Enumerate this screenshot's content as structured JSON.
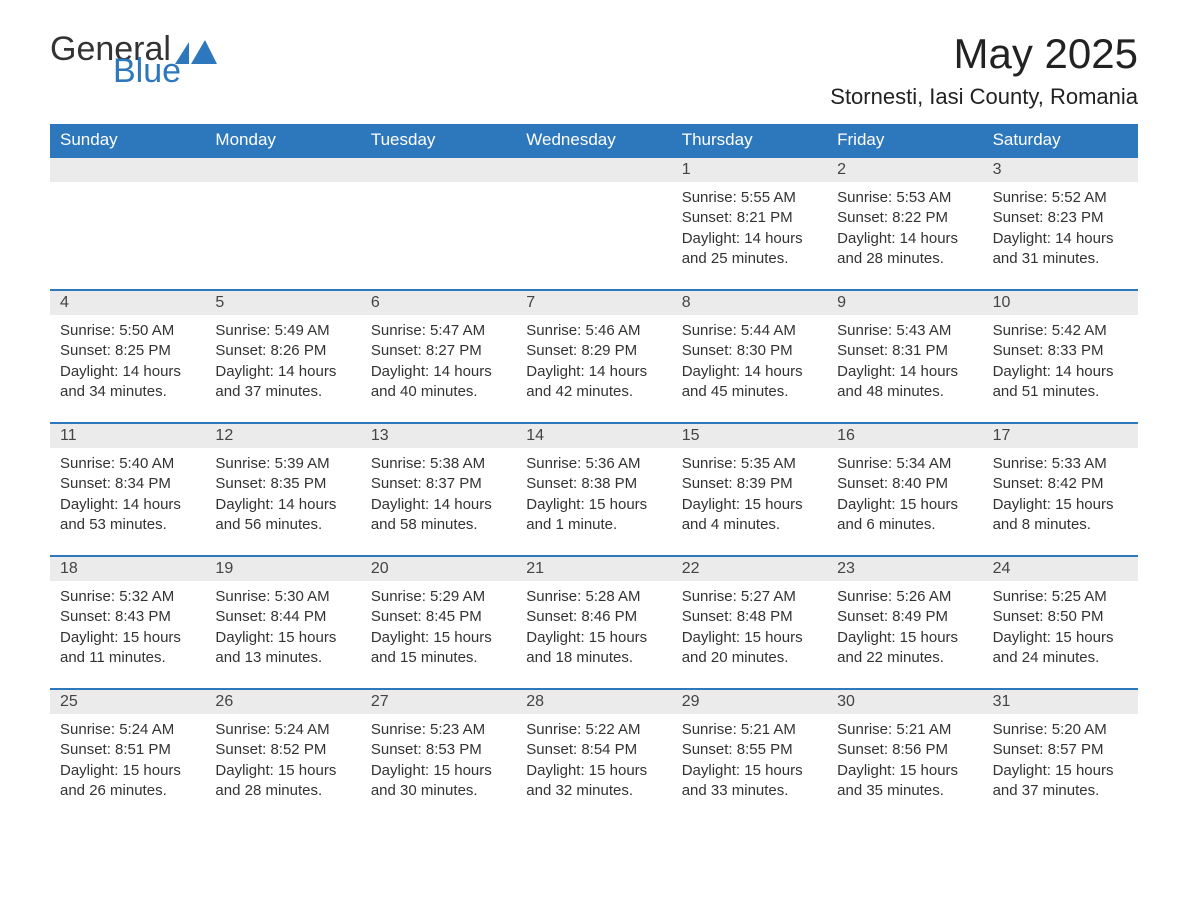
{
  "logo": {
    "part1": "General",
    "part2": "Blue"
  },
  "title": "May 2025",
  "location": "Stornesti, Iasi County, Romania",
  "colors": {
    "header_bg": "#2d77bc",
    "header_text": "#ffffff",
    "daynum_bg": "#ebebeb",
    "border": "#2d77bc",
    "text": "#333333",
    "background": "#ffffff"
  },
  "weekdays": [
    "Sunday",
    "Monday",
    "Tuesday",
    "Wednesday",
    "Thursday",
    "Friday",
    "Saturday"
  ],
  "weeks": [
    [
      null,
      null,
      null,
      null,
      {
        "n": "1",
        "sunrise": "5:55 AM",
        "sunset": "8:21 PM",
        "dl1": "14 hours",
        "dl2": "and 25 minutes."
      },
      {
        "n": "2",
        "sunrise": "5:53 AM",
        "sunset": "8:22 PM",
        "dl1": "14 hours",
        "dl2": "and 28 minutes."
      },
      {
        "n": "3",
        "sunrise": "5:52 AM",
        "sunset": "8:23 PM",
        "dl1": "14 hours",
        "dl2": "and 31 minutes."
      }
    ],
    [
      {
        "n": "4",
        "sunrise": "5:50 AM",
        "sunset": "8:25 PM",
        "dl1": "14 hours",
        "dl2": "and 34 minutes."
      },
      {
        "n": "5",
        "sunrise": "5:49 AM",
        "sunset": "8:26 PM",
        "dl1": "14 hours",
        "dl2": "and 37 minutes."
      },
      {
        "n": "6",
        "sunrise": "5:47 AM",
        "sunset": "8:27 PM",
        "dl1": "14 hours",
        "dl2": "and 40 minutes."
      },
      {
        "n": "7",
        "sunrise": "5:46 AM",
        "sunset": "8:29 PM",
        "dl1": "14 hours",
        "dl2": "and 42 minutes."
      },
      {
        "n": "8",
        "sunrise": "5:44 AM",
        "sunset": "8:30 PM",
        "dl1": "14 hours",
        "dl2": "and 45 minutes."
      },
      {
        "n": "9",
        "sunrise": "5:43 AM",
        "sunset": "8:31 PM",
        "dl1": "14 hours",
        "dl2": "and 48 minutes."
      },
      {
        "n": "10",
        "sunrise": "5:42 AM",
        "sunset": "8:33 PM",
        "dl1": "14 hours",
        "dl2": "and 51 minutes."
      }
    ],
    [
      {
        "n": "11",
        "sunrise": "5:40 AM",
        "sunset": "8:34 PM",
        "dl1": "14 hours",
        "dl2": "and 53 minutes."
      },
      {
        "n": "12",
        "sunrise": "5:39 AM",
        "sunset": "8:35 PM",
        "dl1": "14 hours",
        "dl2": "and 56 minutes."
      },
      {
        "n": "13",
        "sunrise": "5:38 AM",
        "sunset": "8:37 PM",
        "dl1": "14 hours",
        "dl2": "and 58 minutes."
      },
      {
        "n": "14",
        "sunrise": "5:36 AM",
        "sunset": "8:38 PM",
        "dl1": "15 hours",
        "dl2": "and 1 minute."
      },
      {
        "n": "15",
        "sunrise": "5:35 AM",
        "sunset": "8:39 PM",
        "dl1": "15 hours",
        "dl2": "and 4 minutes."
      },
      {
        "n": "16",
        "sunrise": "5:34 AM",
        "sunset": "8:40 PM",
        "dl1": "15 hours",
        "dl2": "and 6 minutes."
      },
      {
        "n": "17",
        "sunrise": "5:33 AM",
        "sunset": "8:42 PM",
        "dl1": "15 hours",
        "dl2": "and 8 minutes."
      }
    ],
    [
      {
        "n": "18",
        "sunrise": "5:32 AM",
        "sunset": "8:43 PM",
        "dl1": "15 hours",
        "dl2": "and 11 minutes."
      },
      {
        "n": "19",
        "sunrise": "5:30 AM",
        "sunset": "8:44 PM",
        "dl1": "15 hours",
        "dl2": "and 13 minutes."
      },
      {
        "n": "20",
        "sunrise": "5:29 AM",
        "sunset": "8:45 PM",
        "dl1": "15 hours",
        "dl2": "and 15 minutes."
      },
      {
        "n": "21",
        "sunrise": "5:28 AM",
        "sunset": "8:46 PM",
        "dl1": "15 hours",
        "dl2": "and 18 minutes."
      },
      {
        "n": "22",
        "sunrise": "5:27 AM",
        "sunset": "8:48 PM",
        "dl1": "15 hours",
        "dl2": "and 20 minutes."
      },
      {
        "n": "23",
        "sunrise": "5:26 AM",
        "sunset": "8:49 PM",
        "dl1": "15 hours",
        "dl2": "and 22 minutes."
      },
      {
        "n": "24",
        "sunrise": "5:25 AM",
        "sunset": "8:50 PM",
        "dl1": "15 hours",
        "dl2": "and 24 minutes."
      }
    ],
    [
      {
        "n": "25",
        "sunrise": "5:24 AM",
        "sunset": "8:51 PM",
        "dl1": "15 hours",
        "dl2": "and 26 minutes."
      },
      {
        "n": "26",
        "sunrise": "5:24 AM",
        "sunset": "8:52 PM",
        "dl1": "15 hours",
        "dl2": "and 28 minutes."
      },
      {
        "n": "27",
        "sunrise": "5:23 AM",
        "sunset": "8:53 PM",
        "dl1": "15 hours",
        "dl2": "and 30 minutes."
      },
      {
        "n": "28",
        "sunrise": "5:22 AM",
        "sunset": "8:54 PM",
        "dl1": "15 hours",
        "dl2": "and 32 minutes."
      },
      {
        "n": "29",
        "sunrise": "5:21 AM",
        "sunset": "8:55 PM",
        "dl1": "15 hours",
        "dl2": "and 33 minutes."
      },
      {
        "n": "30",
        "sunrise": "5:21 AM",
        "sunset": "8:56 PM",
        "dl1": "15 hours",
        "dl2": "and 35 minutes."
      },
      {
        "n": "31",
        "sunrise": "5:20 AM",
        "sunset": "8:57 PM",
        "dl1": "15 hours",
        "dl2": "and 37 minutes."
      }
    ]
  ],
  "labels": {
    "sunrise": "Sunrise: ",
    "sunset": "Sunset: ",
    "daylight": "Daylight: "
  }
}
